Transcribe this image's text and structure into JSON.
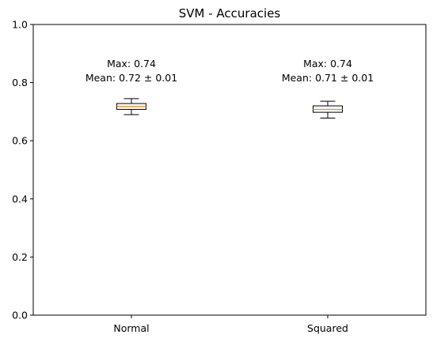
{
  "chart_data": {
    "type": "box",
    "title": "SVM - Accuracies",
    "xlabel": "",
    "ylabel": "",
    "ylim": [
      0,
      1.0
    ],
    "yticks": [
      "0.0",
      "0.2",
      "0.4",
      "0.6",
      "0.8",
      "1.0"
    ],
    "categories": [
      "Normal",
      "Squared"
    ],
    "boxes": [
      {
        "category": "Normal",
        "whisker_low": 0.69,
        "q1": 0.708,
        "median": 0.718,
        "q3": 0.728,
        "whisker_high": 0.745
      },
      {
        "category": "Squared",
        "whisker_low": 0.678,
        "q1": 0.698,
        "median": 0.708,
        "q3": 0.72,
        "whisker_high": 0.736
      }
    ],
    "annotations": [
      {
        "category": "Normal",
        "line1": "Max: 0.74",
        "line2": "Mean: 0.72 ± 0.01"
      },
      {
        "category": "Squared",
        "line1": "Max: 0.74",
        "line2": "Mean: 0.71 ± 0.01"
      }
    ],
    "grid": false,
    "colors": {
      "median": "#ff7f0e",
      "box": "#000000"
    }
  }
}
